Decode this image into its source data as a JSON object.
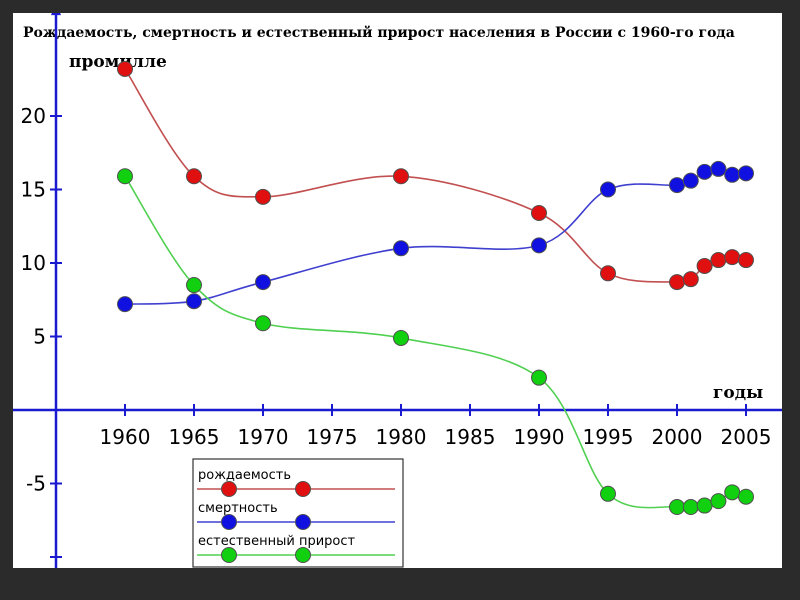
{
  "chart_data": {
    "type": "line",
    "title": "Рождаемость, смертность и естественный прирост населения в России с 1960-го года",
    "ylabel": "промилле",
    "xlabel": "годы",
    "xlim": [
      1955,
      2009
    ],
    "ylim": [
      -11,
      27
    ],
    "x_ticks": [
      1960,
      1965,
      1970,
      1975,
      1980,
      1985,
      1990,
      1995,
      2000,
      2005
    ],
    "y_ticks": [
      -5,
      5,
      10,
      15,
      20
    ],
    "legend_position": "bottom-center",
    "grid": false,
    "series": [
      {
        "name": "рождаемость",
        "color": "#e11010",
        "line_color": "#c25050",
        "x": [
          1960,
          1965,
          1970,
          1980,
          1990,
          1995,
          2000,
          2001,
          2002,
          2003,
          2004,
          2005
        ],
        "values": [
          23.2,
          15.9,
          14.5,
          15.9,
          13.4,
          9.3,
          8.7,
          8.9,
          9.8,
          10.2,
          10.4,
          10.2
        ]
      },
      {
        "name": "смертность",
        "color": "#1010e0",
        "line_color": "#4040d0",
        "x": [
          1960,
          1965,
          1970,
          1980,
          1990,
          1995,
          2000,
          2001,
          2002,
          2003,
          2004,
          2005
        ],
        "values": [
          7.2,
          7.4,
          8.7,
          11.0,
          11.2,
          15.0,
          15.3,
          15.6,
          16.2,
          16.4,
          16.0,
          16.1
        ]
      },
      {
        "name": "естественный прирост",
        "color": "#10d010",
        "line_color": "#50d050",
        "x": [
          1960,
          1965,
          1970,
          1980,
          1990,
          1995,
          2000,
          2001,
          2002,
          2003,
          2004,
          2005
        ],
        "values": [
          15.9,
          8.5,
          5.9,
          4.9,
          2.2,
          -5.7,
          -6.6,
          -6.6,
          -6.5,
          -6.2,
          -5.6,
          -5.9
        ]
      }
    ]
  }
}
